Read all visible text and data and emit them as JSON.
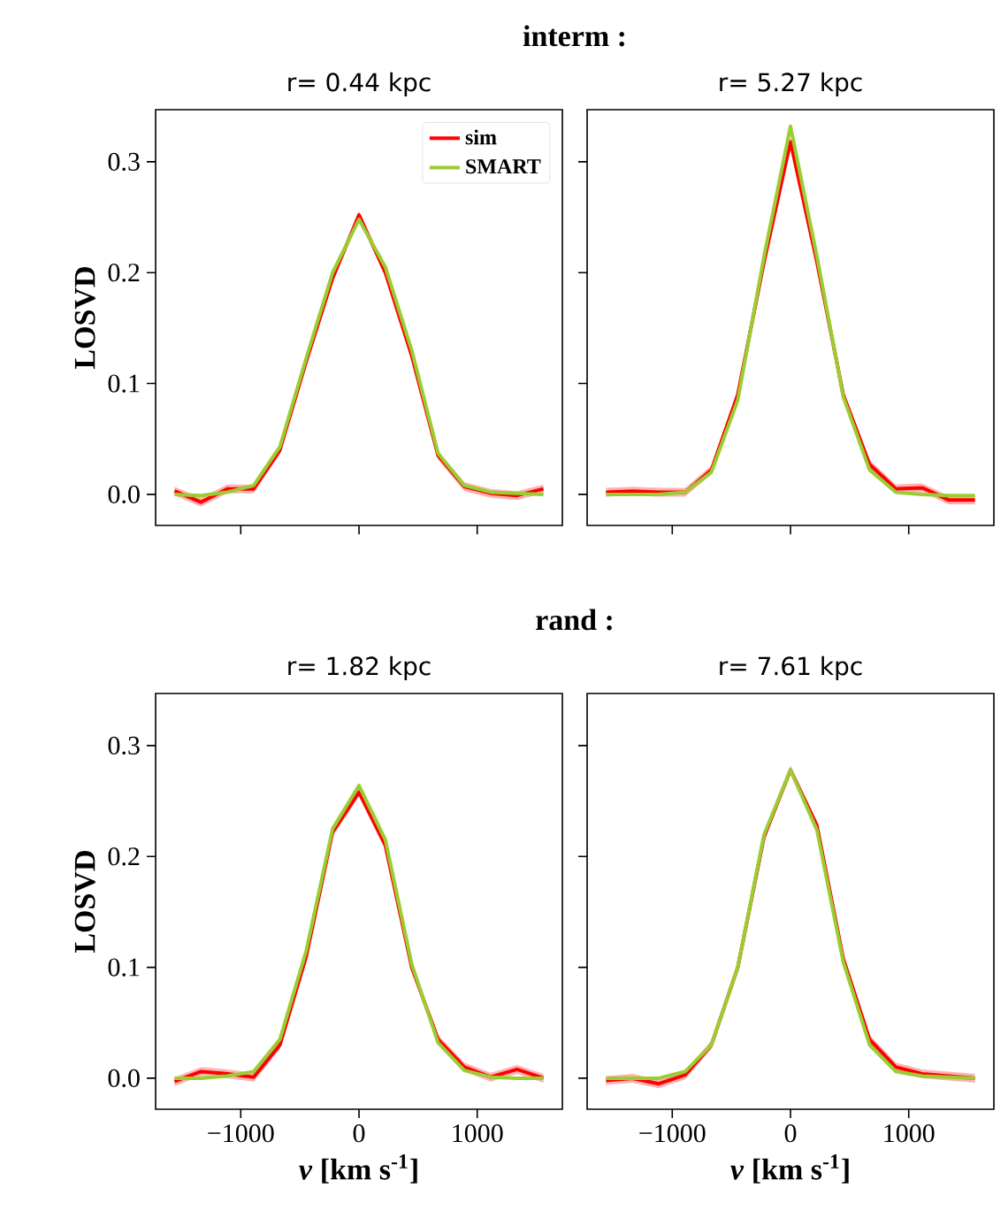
{
  "chart_data": [
    {
      "type": "line",
      "title": "r= 0.44 kpc",
      "annotations": [
        "interm :"
      ],
      "ylabel": "LOSVD",
      "tick_labels": "y",
      "legend": "top right",
      "x": [
        -1560,
        -1337,
        -1114,
        -891,
        -669,
        -446,
        -223,
        0,
        223,
        446,
        669,
        891,
        1114,
        1337,
        1560
      ],
      "xlim": [
        -1720,
        1720
      ],
      "ylim": [
        -0.028,
        0.347
      ],
      "xticks": [
        -1000,
        0,
        1000
      ],
      "yticks": [
        {
          "value": 0,
          "label": "0.0"
        },
        0.1,
        0.2,
        0.3
      ],
      "series": [
        {
          "name": "sim",
          "color": "#ff0000",
          "values": [
            0.003,
            -0.007,
            0.005,
            0.005,
            0.04,
            0.12,
            0.195,
            0.252,
            0.2,
            0.125,
            0.035,
            0.007,
            0.001,
            -0.001,
            0.005
          ],
          "lower": [
            -0.001,
            -0.011,
            0.001,
            0.001,
            0.036,
            0.116,
            0.191,
            0.248,
            0.196,
            0.121,
            0.031,
            0.003,
            -0.003,
            -0.005,
            0.001
          ],
          "upper": [
            0.007,
            -0.003,
            0.009,
            0.009,
            0.044,
            0.124,
            0.199,
            0.256,
            0.204,
            0.129,
            0.039,
            0.011,
            0.005,
            0.003,
            0.009
          ]
        },
        {
          "name": "SMART",
          "color": "#9acd32",
          "values": [
            0.0,
            -0.001,
            0.002,
            0.008,
            0.043,
            0.123,
            0.2,
            0.248,
            0.205,
            0.13,
            0.037,
            0.008,
            0.002,
            0.001,
            0.0
          ]
        }
      ]
    },
    {
      "type": "line",
      "title": "r= 5.27 kpc",
      "tick_labels": false,
      "x": [
        -1560,
        -1337,
        -1114,
        -891,
        -669,
        -446,
        -223,
        0,
        223,
        446,
        669,
        891,
        1114,
        1337,
        1560
      ],
      "xlim": [
        -1720,
        1720
      ],
      "ylim": [
        -0.028,
        0.347
      ],
      "xticks": [
        -1000,
        0,
        1000
      ],
      "yticks": [
        0,
        0.1,
        0.2,
        0.3
      ],
      "series": [
        {
          "color": "#ff0000",
          "values": [
            0.002,
            0.003,
            0.002,
            0.002,
            0.022,
            0.09,
            0.21,
            0.318,
            0.21,
            0.09,
            0.027,
            0.005,
            0.006,
            -0.005,
            -0.005
          ],
          "lower": [
            -0.002,
            -0.001,
            -0.002,
            -0.002,
            0.018,
            0.086,
            0.206,
            0.314,
            0.206,
            0.086,
            0.023,
            0.001,
            0.002,
            -0.009,
            -0.009
          ],
          "upper": [
            0.006,
            0.007,
            0.006,
            0.006,
            0.026,
            0.094,
            0.214,
            0.322,
            0.214,
            0.094,
            0.031,
            0.009,
            0.01,
            -0.001,
            -0.001
          ]
        },
        {
          "color": "#9acd32",
          "values": [
            0.0,
            0.0,
            0.0,
            0.002,
            0.02,
            0.085,
            0.215,
            0.332,
            0.215,
            0.088,
            0.022,
            0.002,
            0.0,
            -0.001,
            -0.001
          ]
        }
      ]
    },
    {
      "type": "line",
      "title": "r= 1.82 kpc",
      "annotations": [
        "rand :"
      ],
      "ylabel": "LOSVD",
      "xlabel": "***v* [km s$^{-1}$]**",
      "x": [
        -1560,
        -1337,
        -1114,
        -891,
        -669,
        -446,
        -223,
        0,
        223,
        446,
        669,
        891,
        1114,
        1337,
        1560
      ],
      "xlim": [
        -1720,
        1720
      ],
      "ylim": [
        -0.028,
        0.347
      ],
      "xticks": [
        {
          "value": -1000,
          "label": "−1000"
        },
        0,
        1000
      ],
      "yticks": [
        {
          "value": 0,
          "label": "0.0"
        },
        0.1,
        0.2,
        0.3
      ],
      "series": [
        {
          "color": "#ff0000",
          "values": [
            -0.003,
            0.006,
            0.004,
            0.001,
            0.03,
            0.11,
            0.222,
            0.258,
            0.21,
            0.1,
            0.035,
            0.01,
            0.001,
            0.008,
            0.0
          ],
          "lower": [
            -0.007,
            0.002,
            0.0,
            -0.003,
            0.026,
            0.106,
            0.218,
            0.254,
            0.206,
            0.096,
            0.031,
            0.006,
            -0.003,
            0.004,
            -0.004
          ],
          "upper": [
            0.001,
            0.01,
            0.008,
            0.005,
            0.034,
            0.114,
            0.226,
            0.262,
            0.214,
            0.104,
            0.039,
            0.014,
            0.005,
            0.012,
            0.004
          ]
        },
        {
          "color": "#9acd32",
          "values": [
            0.0,
            0.0,
            0.002,
            0.006,
            0.035,
            0.115,
            0.225,
            0.264,
            0.215,
            0.103,
            0.032,
            0.007,
            0.001,
            0.0,
            0.0
          ]
        }
      ]
    },
    {
      "type": "line",
      "title": "r= 7.61 kpc",
      "xlabel": "***v* [km s$^{-1}$]**",
      "tick_labels": "x",
      "x": [
        -1560,
        -1337,
        -1114,
        -891,
        -669,
        -446,
        -223,
        0,
        223,
        446,
        669,
        891,
        1114,
        1337,
        1560
      ],
      "xlim": [
        -1720,
        1720
      ],
      "ylim": [
        -0.028,
        0.347
      ],
      "xticks": [
        {
          "value": -1000,
          "label": "−1000"
        },
        0,
        1000
      ],
      "yticks": [
        0,
        0.1,
        0.2,
        0.3
      ],
      "series": [
        {
          "color": "#ff0000",
          "values": [
            -0.002,
            0.0,
            -0.005,
            0.003,
            0.03,
            0.1,
            0.218,
            0.278,
            0.228,
            0.108,
            0.035,
            0.01,
            0.004,
            0.002,
            0.0
          ],
          "lower": [
            -0.006,
            -0.004,
            -0.009,
            -0.001,
            0.026,
            0.096,
            0.214,
            0.274,
            0.224,
            0.104,
            0.031,
            0.006,
            0.0,
            -0.002,
            -0.004
          ],
          "upper": [
            0.002,
            0.004,
            -0.001,
            0.007,
            0.034,
            0.104,
            0.222,
            0.282,
            0.232,
            0.112,
            0.039,
            0.014,
            0.008,
            0.006,
            0.004
          ]
        },
        {
          "color": "#9acd32",
          "values": [
            0.0,
            0.0,
            0.0,
            0.006,
            0.03,
            0.1,
            0.22,
            0.278,
            0.224,
            0.105,
            0.03,
            0.006,
            0.002,
            0.001,
            0.0
          ]
        }
      ]
    }
  ]
}
